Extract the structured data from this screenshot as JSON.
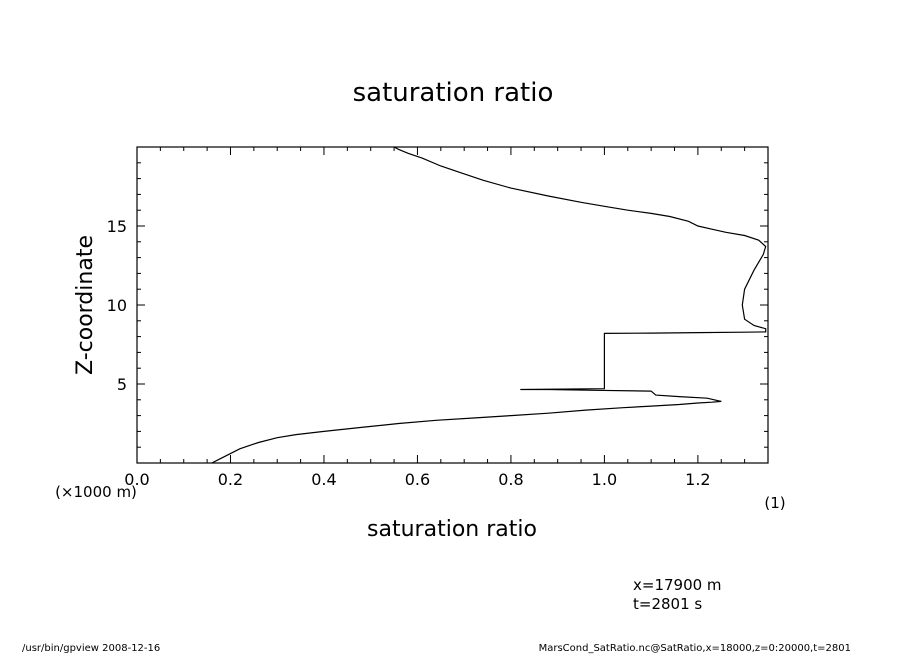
{
  "chart_data": {
    "type": "line",
    "title": "saturation ratio",
    "xlabel": "saturation ratio",
    "xunit": "(1)",
    "ylabel": "Z-coordinate",
    "yunit": "(×1000 m)",
    "xlim": [
      0.0,
      1.35
    ],
    "ylim": [
      0,
      20
    ],
    "x_ticks": [
      0.0,
      0.2,
      0.4,
      0.6,
      0.8,
      1.0,
      1.2
    ],
    "x_tick_labels": [
      "0.0",
      "0.2",
      "0.4",
      "0.6",
      "0.8",
      "1.0",
      "1.2"
    ],
    "y_ticks": [
      5,
      10,
      15
    ],
    "y_tick_labels": [
      "5",
      "10",
      "15"
    ],
    "grid": false,
    "series": [
      {
        "x": [
          0.16,
          0.18,
          0.22,
          0.26,
          0.3,
          0.34,
          0.4,
          0.48,
          0.56,
          0.64,
          0.72,
          0.8,
          0.88,
          0.96,
          1.04,
          1.1,
          1.16,
          1.2,
          1.23,
          1.25,
          1.22,
          1.16,
          1.11,
          1.1,
          0.98,
          0.88,
          0.82,
          1.0,
          1.0,
          1.0,
          1.0,
          1.0,
          1.0,
          1.1,
          1.2,
          1.3,
          1.345,
          1.345,
          1.32,
          1.3,
          1.295,
          1.3,
          1.32,
          1.34,
          1.345,
          1.33,
          1.3,
          1.26,
          1.23,
          1.2,
          1.18,
          1.14,
          1.1,
          1.05,
          1.0,
          0.95,
          0.88,
          0.8,
          0.74,
          0.69,
          0.65,
          0.61,
          0.58,
          0.56,
          0.55
        ],
        "y": [
          0.0,
          0.3,
          0.9,
          1.3,
          1.6,
          1.8,
          2.0,
          2.25,
          2.5,
          2.7,
          2.85,
          3.0,
          3.15,
          3.35,
          3.5,
          3.6,
          3.7,
          3.8,
          3.85,
          3.9,
          4.1,
          4.2,
          4.3,
          4.55,
          4.6,
          4.65,
          4.65,
          4.7,
          4.9,
          6.0,
          7.0,
          7.9,
          8.2,
          8.22,
          8.25,
          8.28,
          8.3,
          8.5,
          8.7,
          9.1,
          10.0,
          11.0,
          12.2,
          13.2,
          13.7,
          14.1,
          14.4,
          14.6,
          14.8,
          15.0,
          15.3,
          15.6,
          15.8,
          16.0,
          16.25,
          16.5,
          16.9,
          17.4,
          17.9,
          18.4,
          18.8,
          19.3,
          19.6,
          19.85,
          20.0
        ]
      }
    ]
  },
  "annotations": {
    "position_x": "x=17900 m",
    "time": "t=2801 s"
  },
  "footer": {
    "left": "/usr/bin/gpview   2008-12-16",
    "right": "MarsCond_SatRatio.nc@SatRatio,x=18000,z=0:20000,t=2801"
  }
}
